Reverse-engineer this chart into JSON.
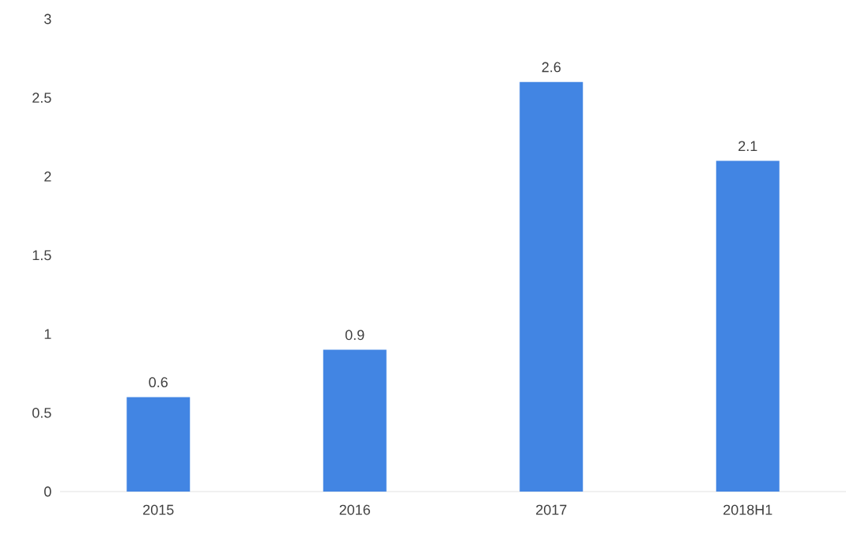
{
  "chart_data": {
    "type": "bar",
    "categories": [
      "2015",
      "2016",
      "2017",
      "2018H1"
    ],
    "values": [
      0.6,
      0.9,
      2.6,
      2.1
    ],
    "color": "#4285e3",
    "ylim": [
      0,
      3
    ],
    "yticks": [
      0,
      0.5,
      1,
      1.5,
      2,
      2.5,
      3
    ],
    "grid": false,
    "data_labels": true
  }
}
